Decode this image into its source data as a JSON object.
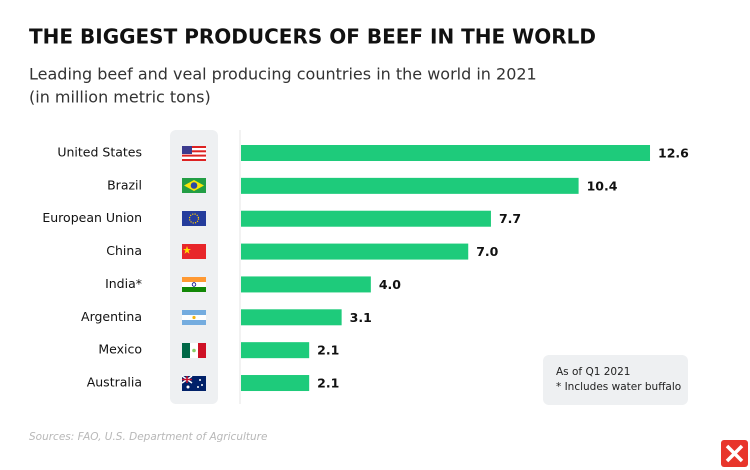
{
  "chart_data": {
    "type": "bar",
    "orientation": "horizontal",
    "title": "THE BIGGEST PRODUCERS OF BEEF IN THE WORLD",
    "subtitle": [
      "Leading beef and veal producing countries in the world in 2021",
      "(in million metric tons)"
    ],
    "categories": [
      "United States",
      "Brazil",
      "European Union",
      "China",
      "India*",
      "Argentina",
      "Mexico",
      "Australia"
    ],
    "values": [
      12.6,
      10.4,
      7.7,
      7.0,
      4.0,
      3.1,
      2.1,
      2.1
    ],
    "value_labels": [
      "12.6",
      "10.4",
      "7.7",
      "7.0",
      "4.0",
      "3.1",
      "2.1",
      "2.1"
    ],
    "color": "#1ecb7b",
    "xlim": [
      0,
      13
    ],
    "notes": [
      "As of Q1 2021",
      "* Includes water buffalo"
    ],
    "source": "Sources: FAO, U.S. Department of Agriculture"
  }
}
